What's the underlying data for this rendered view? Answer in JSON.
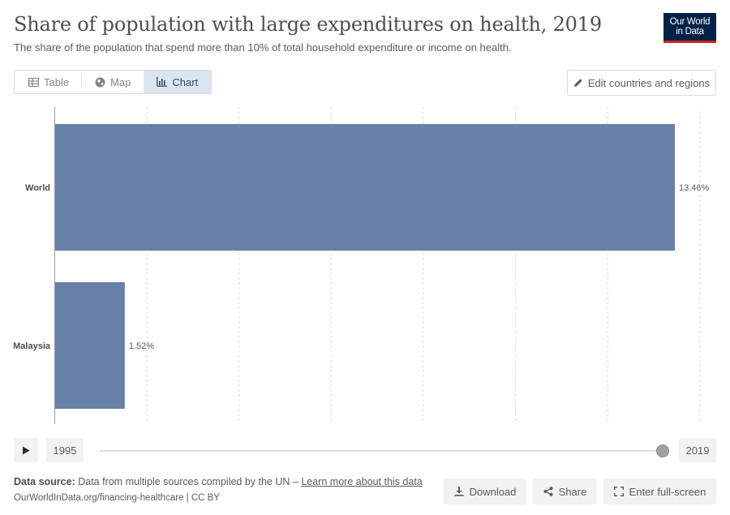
{
  "header": {
    "title": "Share of population with large expenditures on health, 2019",
    "subtitle": "The share of the population that spend more than 10% of total household expenditure or income on health.",
    "logo_line1": "Our World",
    "logo_line2": "in Data"
  },
  "tabs": [
    {
      "label": "Table",
      "icon": "table-icon"
    },
    {
      "label": "Map",
      "icon": "globe-icon"
    },
    {
      "label": "Chart",
      "icon": "chart-icon",
      "active": true
    }
  ],
  "edit_button": "Edit countries and regions",
  "timeline": {
    "start_year": "1995",
    "end_year": "2019",
    "position": 1.0
  },
  "footer": {
    "source_label": "Data source:",
    "source_text": "Data from multiple sources compiled by the UN –",
    "learn_more": "Learn more about this data",
    "url": "OurWorldInData.org/financing-healthcare | CC BY",
    "download": "Download",
    "share": "Share",
    "fullscreen": "Enter full-screen"
  },
  "colors": {
    "bar": "#6780a8",
    "accent_tab": "#dbe5f0",
    "logo_bg": "#002147",
    "logo_stripe": "#ce261e"
  },
  "chart_data": {
    "type": "bar",
    "orientation": "horizontal",
    "categories": [
      "World",
      "Malaysia"
    ],
    "values": [
      13.46,
      1.52
    ],
    "value_labels": [
      "13.46%",
      "1.52%"
    ],
    "xlim": [
      0,
      14
    ],
    "grid": true,
    "grid_style": "dashed-vertical"
  }
}
